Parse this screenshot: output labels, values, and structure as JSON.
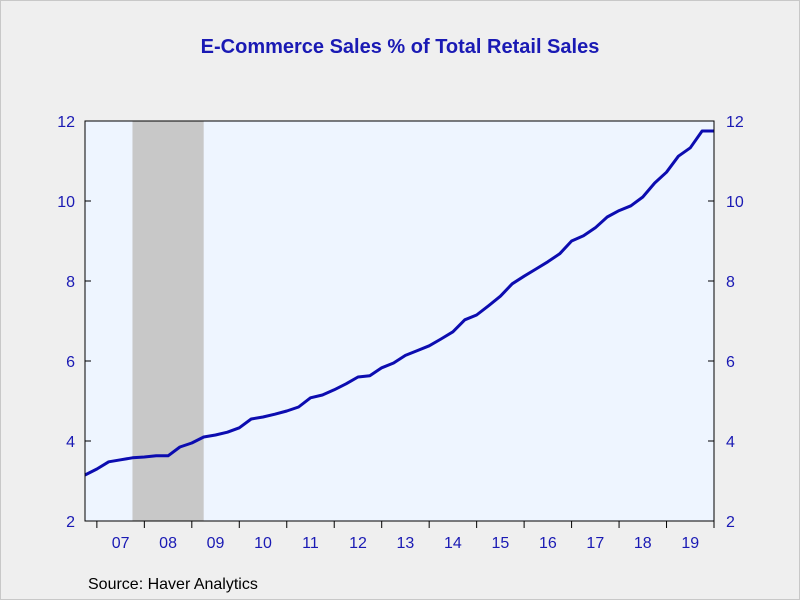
{
  "chart_data": {
    "type": "line",
    "title": "E-Commerce Sales % of Total Retail Sales",
    "source": "Source:  Haver Analytics",
    "ylim": [
      2,
      12
    ],
    "yticks": [
      2,
      4,
      6,
      8,
      10,
      12
    ],
    "ytick_labels": [
      "2",
      "4",
      "6",
      "8",
      "10",
      "12"
    ],
    "xlim": [
      2006.75,
      2020.0
    ],
    "x_year_labels": [
      "07",
      "08",
      "09",
      "10",
      "11",
      "12",
      "13",
      "14",
      "15",
      "16",
      "17",
      "18",
      "19"
    ],
    "grid": false,
    "recession_band": [
      2007.75,
      2009.25
    ],
    "colors": {
      "line": "#0c0cb0",
      "axis_text": "#1a1ab4",
      "plot_bg": "#eef5ff",
      "band": "#c8c8c8"
    },
    "series": [
      {
        "x": [
          2006.75,
          2007.0,
          2007.25,
          2007.5,
          2007.75,
          2008.0,
          2008.25,
          2008.5,
          2008.75,
          2009.0,
          2009.25,
          2009.5,
          2009.75,
          2010.0,
          2010.25,
          2010.5,
          2010.75,
          2011.0,
          2011.25,
          2011.5,
          2011.75,
          2012.0,
          2012.25,
          2012.5,
          2012.75,
          2013.0,
          2013.25,
          2013.5,
          2013.75,
          2014.0,
          2014.25,
          2014.5,
          2014.75,
          2015.0,
          2015.25,
          2015.5,
          2015.75,
          2016.0,
          2016.25,
          2016.5,
          2016.75,
          2017.0,
          2017.25,
          2017.5,
          2017.75,
          2018.0,
          2018.25,
          2018.5,
          2018.75,
          2019.0,
          2019.25,
          2019.5,
          2019.75,
          2020.0
        ],
        "values": [
          3.15,
          3.3,
          3.48,
          3.53,
          3.58,
          3.6,
          3.63,
          3.63,
          3.85,
          3.95,
          4.1,
          4.15,
          4.22,
          4.33,
          4.55,
          4.6,
          4.67,
          4.75,
          4.85,
          5.08,
          5.15,
          5.28,
          5.43,
          5.6,
          5.63,
          5.83,
          5.95,
          6.14,
          6.26,
          6.38,
          6.55,
          6.73,
          7.03,
          7.15,
          7.38,
          7.62,
          7.93,
          8.12,
          8.3,
          8.48,
          8.68,
          9.0,
          9.13,
          9.33,
          9.6,
          9.76,
          9.88,
          10.1,
          10.45,
          10.72,
          11.12,
          11.33,
          11.75,
          11.75
        ]
      }
    ]
  }
}
